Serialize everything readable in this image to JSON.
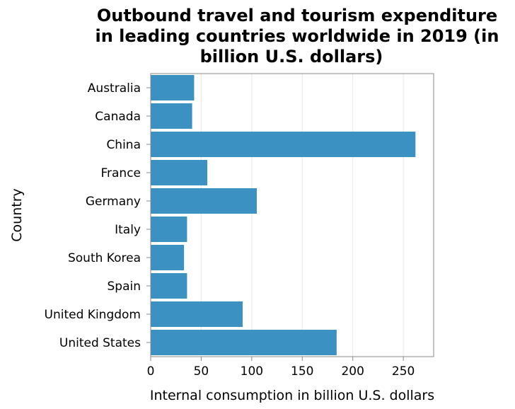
{
  "chart_data": {
    "type": "bar",
    "orientation": "horizontal",
    "title_lines": [
      "Outbound travel and tourism expenditure",
      "in leading countries worldwide in 2019 (in",
      "billion U.S. dollars)"
    ],
    "xlabel": "Internal consumption in billion U.S. dollars",
    "ylabel": "Country",
    "categories": [
      "Australia",
      "Canada",
      "China",
      "France",
      "Germany",
      "Italy",
      "South Korea",
      "Spain",
      "United Kingdom",
      "United States"
    ],
    "values": [
      43,
      41,
      262,
      56,
      105,
      36,
      33,
      36,
      91,
      184
    ],
    "xlim": [
      0,
      280
    ],
    "xticks": [
      0,
      50,
      100,
      150,
      200,
      250
    ],
    "grid": true,
    "bar_color": "#3a91c2"
  }
}
